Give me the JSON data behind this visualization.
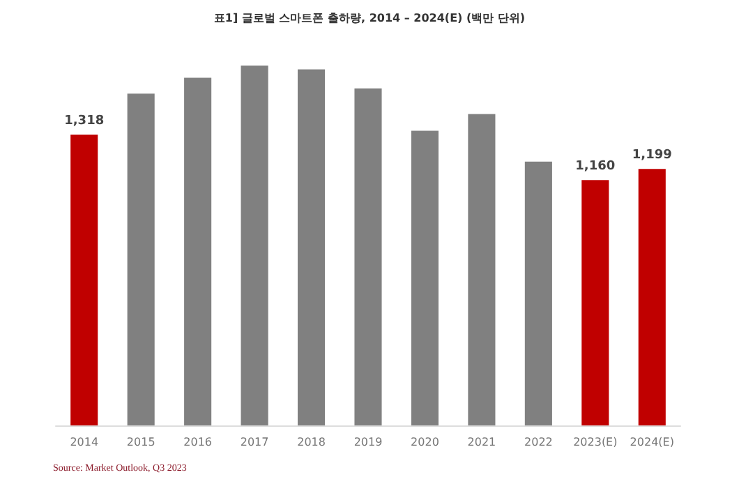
{
  "chart_data": {
    "type": "bar",
    "title": "표1] 글로벌 스마트폰 출하량, 2014 – 2024(E) (백만 단위)",
    "categories": [
      "2014",
      "2015",
      "2016",
      "2017",
      "2018",
      "2019",
      "2020",
      "2021",
      "2022",
      "2023(E)",
      "2024(E)"
    ],
    "values": [
      1318,
      1460,
      1515,
      1557,
      1544,
      1478,
      1331,
      1389,
      1224,
      1160,
      1199
    ],
    "colors": [
      "#c00000",
      "#808080",
      "#808080",
      "#808080",
      "#808080",
      "#808080",
      "#808080",
      "#808080",
      "#808080",
      "#c00000",
      "#c00000"
    ],
    "value_labels": [
      "1,318",
      null,
      null,
      null,
      null,
      null,
      null,
      null,
      null,
      "1,160",
      "1,199"
    ],
    "ylim": [
      310,
      1557
    ],
    "tick_labels": "x",
    "annotations": [
      "Source: Market Outlook, Q3 2023"
    ]
  }
}
